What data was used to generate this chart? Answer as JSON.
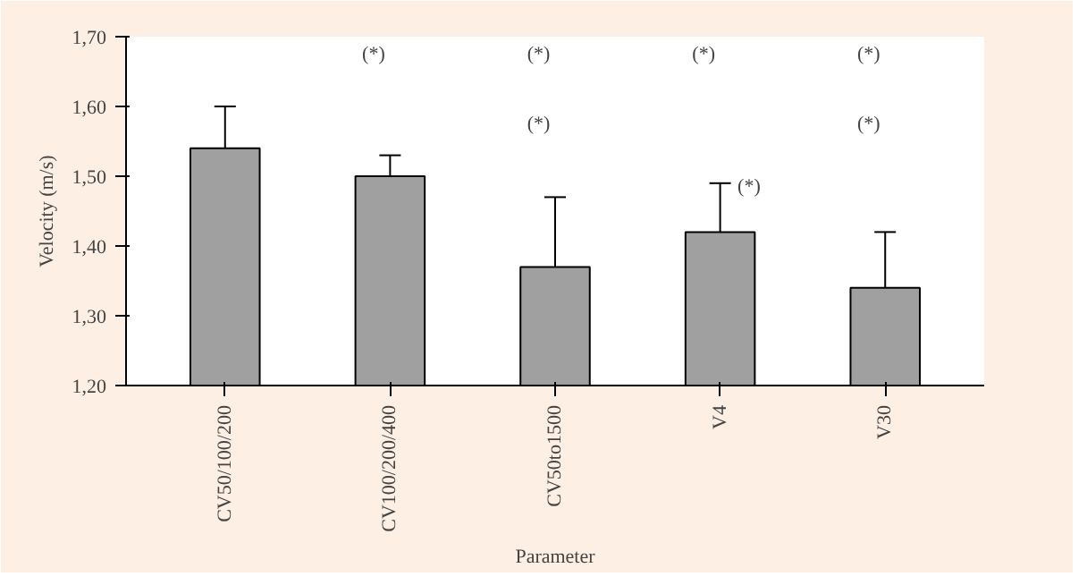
{
  "chart_data": {
    "type": "bar",
    "xlabel": "Parameter",
    "ylabel": "Velocity (m/s)",
    "categories": [
      "CV50/100/200",
      "CV100/200/400",
      "CV50to1500",
      "V4",
      "V30"
    ],
    "values": [
      1.54,
      1.5,
      1.37,
      1.42,
      1.34
    ],
    "errors": [
      [
        1.54,
        1.6
      ],
      [
        1.5,
        1.53
      ],
      [
        1.37,
        1.47
      ],
      [
        1.42,
        1.49
      ],
      [
        1.34,
        1.42
      ]
    ],
    "color": "#a0a0a0",
    "ylim": [
      1.2,
      1.7
    ],
    "yticks": [
      {
        "value": 1.2,
        "label": "1,20"
      },
      {
        "value": 1.3,
        "label": "1,30"
      },
      {
        "value": 1.4,
        "label": "1,40"
      },
      {
        "value": 1.5,
        "label": "1,50"
      },
      {
        "value": 1.6,
        "label": "1,60"
      },
      {
        "value": 1.7,
        "label": "1,70"
      }
    ],
    "grid": false,
    "annotations": [
      "(*)",
      "(*)",
      "(*)",
      "(*)",
      "(*)",
      "(*)",
      "(*)"
    ]
  }
}
